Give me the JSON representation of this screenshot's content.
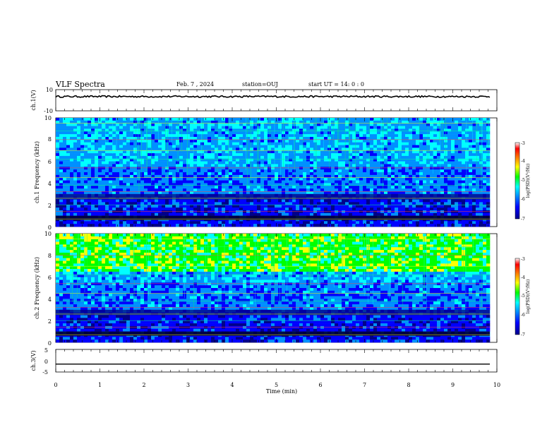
{
  "header": {
    "title": "VLF Spectra",
    "date": "Feb. 7 , 2024",
    "station": "station=OUJ",
    "start_ut": "start UT =  14: 0  : 0"
  },
  "chart_data": [
    {
      "type": "line",
      "panel": "ch1-waveform",
      "ylabel": "ch.1(V)",
      "ylim": [
        -10,
        10
      ],
      "yticks": [
        "10",
        "-10"
      ],
      "xlim": [
        0,
        10
      ],
      "series": [
        {
          "values_approx_constant": 3.5
        }
      ]
    },
    {
      "type": "heatmap",
      "panel": "ch1-spectrogram",
      "ylabel": "ch.1 Frequency (kHz)",
      "ylim": [
        0,
        10
      ],
      "yticks": [
        "0",
        "2",
        "4",
        "6",
        "8",
        "10"
      ],
      "xlim": [
        0,
        9.8
      ],
      "colorbar": {
        "label": "log(PSD)(V²/Hz)",
        "range": [
          -7,
          -3
        ],
        "ticks": [
          "-3",
          "-4",
          "-5",
          "-6",
          "-7"
        ]
      }
    },
    {
      "type": "heatmap",
      "panel": "ch2-spectrogram",
      "ylabel": "ch.2 Frequency (kHz)",
      "ylim": [
        0,
        10
      ],
      "yticks": [
        "0",
        "2",
        "4",
        "6",
        "8",
        "10"
      ],
      "xlim": [
        0,
        9.8
      ],
      "colorbar": {
        "label": "log(PSD)(V²/Hz)",
        "range": [
          -7,
          -3
        ],
        "ticks": [
          "-3",
          "-4",
          "-5",
          "-6",
          "-7"
        ]
      }
    },
    {
      "type": "line",
      "panel": "ch3-waveform",
      "ylabel": "ch.3(V)",
      "ylim": [
        -5,
        5
      ],
      "yticks": [
        "5",
        "0",
        "-5"
      ],
      "xlim": [
        0,
        10
      ],
      "series": [
        {
          "values_approx_constant": -1.5
        }
      ]
    }
  ],
  "x_axis": {
    "label": "Time (min)",
    "ticks": [
      "0",
      "1",
      "2",
      "3",
      "4",
      "5",
      "6",
      "7",
      "8",
      "9",
      "10"
    ],
    "range": [
      0,
      10
    ]
  },
  "colors": {
    "scale": [
      "#00008a",
      "#0000ff",
      "#0090ff",
      "#00ffff",
      "#00ff00",
      "#ffff00",
      "#ff8000",
      "#ff0000",
      "#ffffff"
    ]
  }
}
